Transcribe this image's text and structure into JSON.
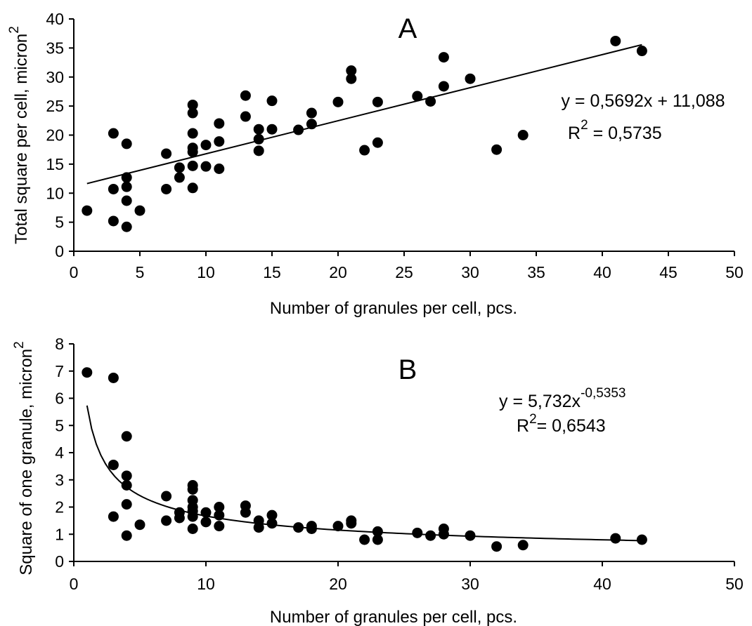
{
  "chart_data": [
    {
      "panel_label": "A",
      "type": "scatter",
      "xlabel": "Number of granules per cell, pcs.",
      "ylabel_main": "Total square per cell, micron",
      "ylabel_sup": "2",
      "xlim": [
        0,
        50
      ],
      "ylim": [
        0,
        40
      ],
      "xticks": [
        "0",
        "5",
        "10",
        "15",
        "20",
        "25",
        "30",
        "35",
        "40",
        "45",
        "50"
      ],
      "yticks": [
        "0",
        "5",
        "10",
        "15",
        "20",
        "25",
        "30",
        "35",
        "40"
      ],
      "equation": "y = 0,5692x + 11,088",
      "r2_label": "R",
      "r2_sup": "2",
      "r2_value": " = 0,5735",
      "trendline": {
        "type": "linear",
        "slope": 0.5692,
        "intercept": 11.088,
        "x_range": [
          1,
          43
        ]
      },
      "points": [
        [
          1,
          7.0
        ],
        [
          3,
          20.3
        ],
        [
          3,
          10.7
        ],
        [
          3,
          5.2
        ],
        [
          4,
          18.5
        ],
        [
          4,
          12.7
        ],
        [
          4,
          11.1
        ],
        [
          4,
          8.7
        ],
        [
          4,
          4.2
        ],
        [
          5,
          7.0
        ],
        [
          7,
          16.8
        ],
        [
          7,
          10.7
        ],
        [
          8,
          14.4
        ],
        [
          8,
          12.7
        ],
        [
          9,
          25.2
        ],
        [
          9,
          23.8
        ],
        [
          9,
          20.3
        ],
        [
          9,
          17.8
        ],
        [
          9,
          17.1
        ],
        [
          9,
          14.7
        ],
        [
          9,
          10.9
        ],
        [
          10,
          18.3
        ],
        [
          10,
          14.6
        ],
        [
          11,
          22.0
        ],
        [
          11,
          18.9
        ],
        [
          11,
          14.2
        ],
        [
          13,
          26.8
        ],
        [
          13,
          23.2
        ],
        [
          14,
          21.0
        ],
        [
          14,
          19.3
        ],
        [
          14,
          17.3
        ],
        [
          15,
          25.9
        ],
        [
          15,
          21.0
        ],
        [
          17,
          20.9
        ],
        [
          18,
          23.8
        ],
        [
          18,
          21.9
        ],
        [
          20,
          25.7
        ],
        [
          21,
          31.1
        ],
        [
          21,
          29.7
        ],
        [
          22,
          17.4
        ],
        [
          23,
          25.7
        ],
        [
          23,
          18.7
        ],
        [
          26,
          26.7
        ],
        [
          27,
          25.8
        ],
        [
          28,
          33.4
        ],
        [
          28,
          28.4
        ],
        [
          30,
          29.7
        ],
        [
          32,
          17.5
        ],
        [
          34,
          20.0
        ],
        [
          41,
          36.2
        ],
        [
          43,
          34.5
        ]
      ]
    },
    {
      "panel_label": "B",
      "type": "scatter",
      "xlabel": "Number of granules per cell, pcs.",
      "ylabel_main": "Square of one granule, micron",
      "ylabel_sup": "2",
      "xlim": [
        0,
        50
      ],
      "ylim": [
        0,
        8
      ],
      "xticks": [
        "0",
        "10",
        "20",
        "30",
        "40",
        "50"
      ],
      "yticks": [
        "0",
        "1",
        "2",
        "3",
        "4",
        "5",
        "6",
        "7",
        "8"
      ],
      "equation_base": "y = 5,732x",
      "equation_sup": "-0,5353",
      "r2_label": "R",
      "r2_sup": "2",
      "r2_value": "= 0,6543",
      "trendline": {
        "type": "power",
        "coefficient": 5.732,
        "exponent": -0.5353,
        "x_range": [
          1,
          43
        ]
      },
      "points": [
        [
          1,
          6.95
        ],
        [
          3,
          6.75
        ],
        [
          3,
          3.55
        ],
        [
          3,
          1.65
        ],
        [
          4,
          4.6
        ],
        [
          4,
          3.15
        ],
        [
          4,
          2.8
        ],
        [
          4,
          2.1
        ],
        [
          4,
          0.95
        ],
        [
          5,
          1.35
        ],
        [
          7,
          2.4
        ],
        [
          7,
          1.5
        ],
        [
          8,
          1.8
        ],
        [
          8,
          1.6
        ],
        [
          9,
          2.8
        ],
        [
          9,
          2.65
        ],
        [
          9,
          2.25
        ],
        [
          9,
          2.0
        ],
        [
          9,
          1.85
        ],
        [
          9,
          1.65
        ],
        [
          9,
          1.2
        ],
        [
          10,
          1.8
        ],
        [
          10,
          1.45
        ],
        [
          11,
          2.0
        ],
        [
          11,
          1.7
        ],
        [
          11,
          1.3
        ],
        [
          13,
          2.05
        ],
        [
          13,
          1.8
        ],
        [
          14,
          1.5
        ],
        [
          14,
          1.25
        ],
        [
          15,
          1.7
        ],
        [
          15,
          1.4
        ],
        [
          17,
          1.25
        ],
        [
          18,
          1.3
        ],
        [
          18,
          1.2
        ],
        [
          20,
          1.3
        ],
        [
          21,
          1.5
        ],
        [
          21,
          1.4
        ],
        [
          22,
          0.8
        ],
        [
          23,
          1.1
        ],
        [
          23,
          0.8
        ],
        [
          26,
          1.05
        ],
        [
          27,
          0.95
        ],
        [
          28,
          1.2
        ],
        [
          28,
          1.0
        ],
        [
          30,
          0.95
        ],
        [
          32,
          0.55
        ],
        [
          34,
          0.6
        ],
        [
          41,
          0.85
        ],
        [
          43,
          0.8
        ]
      ]
    }
  ]
}
